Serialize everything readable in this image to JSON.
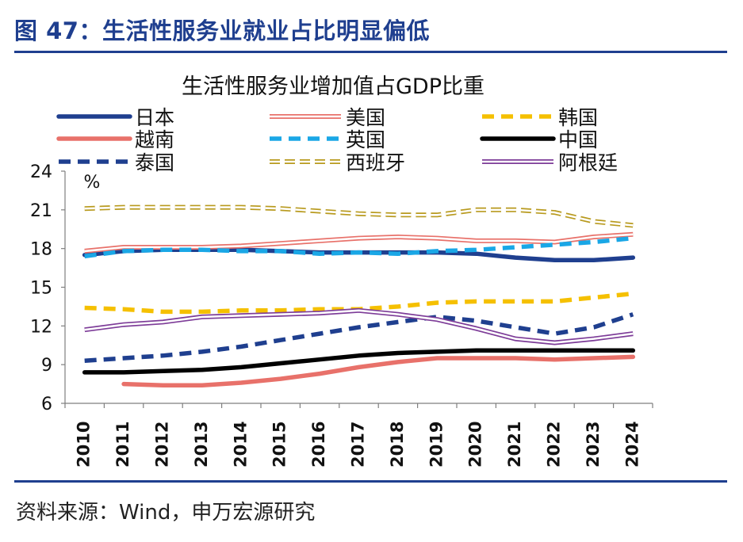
{
  "figure": {
    "title": "图 47：生活性服务业就业占比明显偏低",
    "source": "资料来源：Wind，申万宏源研究"
  },
  "chart_data": {
    "type": "line",
    "title": "生活性服务业增加值占GDP比重",
    "ylabel": "%",
    "xlabel": "",
    "ylim": [
      6,
      24
    ],
    "yticks": [
      6,
      9,
      12,
      15,
      18,
      21,
      24
    ],
    "x": [
      "2010",
      "2011",
      "2012",
      "2013",
      "2014",
      "2015",
      "2016",
      "2017",
      "2018",
      "2019",
      "2020",
      "2021",
      "2022",
      "2023",
      "2024"
    ],
    "grid": false,
    "legend_position": "top",
    "series": [
      {
        "name": "日本",
        "color": "#1f3f8f",
        "style": "solid",
        "values": [
          17.5,
          17.8,
          17.9,
          17.9,
          17.9,
          17.8,
          17.7,
          17.7,
          17.7,
          17.7,
          17.6,
          17.3,
          17.1,
          17.1,
          17.3
        ]
      },
      {
        "name": "美国",
        "color": "#e8716a",
        "style": "double",
        "values": [
          17.8,
          18.1,
          18.1,
          18.1,
          18.2,
          18.4,
          18.6,
          18.8,
          18.9,
          18.8,
          18.6,
          18.6,
          18.5,
          18.9,
          19.1
        ]
      },
      {
        "name": "韩国",
        "color": "#f5c000",
        "style": "dashed",
        "values": [
          13.4,
          13.3,
          13.1,
          13.1,
          13.2,
          13.2,
          13.3,
          13.3,
          13.5,
          13.8,
          13.9,
          13.9,
          13.9,
          14.2,
          14.5
        ]
      },
      {
        "name": "越南",
        "color": "#e8716a",
        "style": "solid",
        "values": [
          null,
          7.5,
          7.4,
          7.4,
          7.6,
          7.9,
          8.3,
          8.8,
          9.2,
          9.5,
          9.5,
          9.5,
          9.4,
          9.5,
          9.6
        ]
      },
      {
        "name": "英国",
        "color": "#1aa7e6",
        "style": "dashed",
        "values": [
          17.4,
          17.8,
          17.9,
          17.9,
          17.8,
          17.8,
          17.6,
          17.7,
          17.6,
          17.8,
          17.9,
          18.1,
          18.3,
          18.5,
          18.8
        ]
      },
      {
        "name": "中国",
        "color": "#000000",
        "style": "solid",
        "values": [
          8.4,
          8.4,
          8.5,
          8.6,
          8.8,
          9.1,
          9.4,
          9.7,
          9.9,
          10.0,
          10.1,
          10.1,
          10.1,
          10.1,
          10.1
        ]
      },
      {
        "name": "泰国",
        "color": "#1f3f8f",
        "style": "dashed",
        "values": [
          9.3,
          9.5,
          9.7,
          10.0,
          10.4,
          10.9,
          11.4,
          11.9,
          12.3,
          12.7,
          12.4,
          11.9,
          11.4,
          11.9,
          12.9
        ]
      },
      {
        "name": "西班牙",
        "color": "#b89a1e",
        "style": "double-dashed",
        "values": [
          21.1,
          21.2,
          21.2,
          21.2,
          21.2,
          21.1,
          20.9,
          20.7,
          20.6,
          20.6,
          21.0,
          21.0,
          20.8,
          20.1,
          19.8
        ]
      },
      {
        "name": "阿根廷",
        "color": "#7d3c98",
        "style": "double",
        "values": [
          11.7,
          12.1,
          12.3,
          12.7,
          12.8,
          12.9,
          13.0,
          13.2,
          12.9,
          12.5,
          11.8,
          11.0,
          10.7,
          11.0,
          11.4
        ]
      }
    ]
  }
}
